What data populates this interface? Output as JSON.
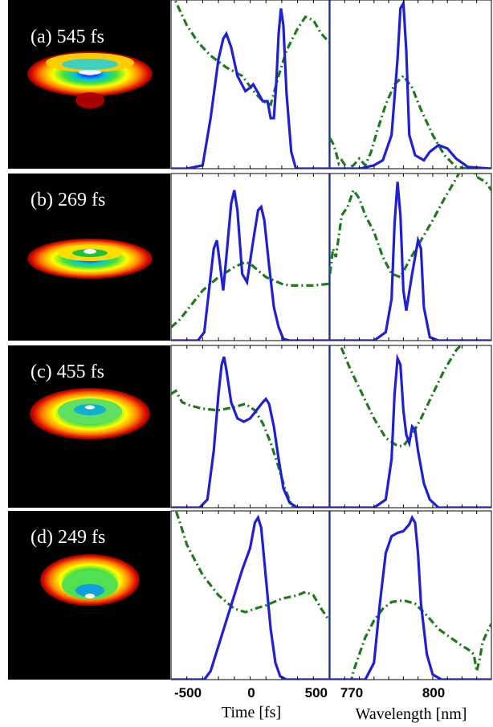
{
  "chart_data": {
    "type": "line",
    "time_axis": {
      "label": "Time [fs]",
      "ticks": [
        -500,
        0,
        500
      ],
      "range": [
        -500,
        500
      ]
    },
    "wavelength_axis": {
      "label": "Wavelength [nm]",
      "ticks": [
        770,
        800
      ],
      "range": [
        765,
        820
      ]
    },
    "colors": {
      "intensity": "#1f1fd6",
      "phase": "#1f7a1f",
      "frame": "#1f3fa8"
    },
    "panels": [
      {
        "label": "(a) 545 fs",
        "temporal_intensity": [
          [
            -500,
            0
          ],
          [
            -400,
            0
          ],
          [
            -300,
            0.02
          ],
          [
            -250,
            0.3
          ],
          [
            -200,
            0.65
          ],
          [
            -170,
            0.77
          ],
          [
            -150,
            0.8
          ],
          [
            -120,
            0.72
          ],
          [
            -80,
            0.55
          ],
          [
            -30,
            0.46
          ],
          [
            0,
            0.48
          ],
          [
            20,
            0.5
          ],
          [
            50,
            0.45
          ],
          [
            80,
            0.4
          ],
          [
            110,
            0.4
          ],
          [
            130,
            0.3
          ],
          [
            150,
            0.3
          ],
          [
            165,
            0.5
          ],
          [
            180,
            0.8
          ],
          [
            195,
            0.95
          ],
          [
            210,
            0.85
          ],
          [
            230,
            0.45
          ],
          [
            260,
            0.1
          ],
          [
            290,
            0
          ],
          [
            500,
            0
          ]
        ],
        "temporal_phase": [
          [
            -500,
            1.05
          ],
          [
            -450,
            0.95
          ],
          [
            -400,
            0.85
          ],
          [
            -330,
            0.75
          ],
          [
            -250,
            0.67
          ],
          [
            -150,
            0.6
          ],
          [
            -50,
            0.55
          ],
          [
            30,
            0.45
          ],
          [
            80,
            0.4
          ],
          [
            130,
            0.38
          ],
          [
            180,
            0.55
          ],
          [
            230,
            0.7
          ],
          [
            300,
            0.83
          ],
          [
            350,
            0.9
          ],
          [
            400,
            0.88
          ],
          [
            450,
            0.8
          ],
          [
            500,
            0.75
          ]
        ],
        "spectral_intensity": [
          [
            765,
            0
          ],
          [
            775,
            0
          ],
          [
            780,
            0.02
          ],
          [
            783,
            0.05
          ],
          [
            786,
            0.2
          ],
          [
            788,
            0.65
          ],
          [
            789,
            0.95
          ],
          [
            790,
            0.98
          ],
          [
            791,
            0.7
          ],
          [
            792,
            0.2
          ],
          [
            794,
            0.08
          ],
          [
            797,
            0.05
          ],
          [
            799,
            0.1
          ],
          [
            802,
            0.14
          ],
          [
            805,
            0.12
          ],
          [
            808,
            0.06
          ],
          [
            812,
            0.01
          ],
          [
            820,
            0
          ]
        ],
        "spectral_phase": [
          [
            765,
            0.18
          ],
          [
            766,
            0.15
          ],
          [
            767,
            0.1
          ],
          [
            768,
            0.03
          ],
          [
            769,
            0.05
          ],
          [
            771,
            0.0
          ],
          [
            773,
            0.02
          ],
          [
            775,
            0.06
          ],
          [
            777,
            0.02
          ],
          [
            779,
            0.1
          ],
          [
            781,
            0.22
          ],
          [
            784,
            0.38
          ],
          [
            787,
            0.5
          ],
          [
            790,
            0.55
          ],
          [
            793,
            0.48
          ],
          [
            796,
            0.35
          ],
          [
            800,
            0.2
          ],
          [
            804,
            0.08
          ],
          [
            808,
            0.01
          ],
          [
            812,
            0
          ],
          [
            815,
            0
          ],
          [
            818,
            0
          ],
          [
            820,
            0
          ]
        ]
      },
      {
        "label": "(b) 269 fs",
        "temporal_intensity": [
          [
            -500,
            0
          ],
          [
            -330,
            0
          ],
          [
            -290,
            0.05
          ],
          [
            -260,
            0.3
          ],
          [
            -230,
            0.55
          ],
          [
            -210,
            0.6
          ],
          [
            -190,
            0.45
          ],
          [
            -170,
            0.3
          ],
          [
            -150,
            0.5
          ],
          [
            -120,
            0.82
          ],
          [
            -100,
            0.9
          ],
          [
            -80,
            0.78
          ],
          [
            -50,
            0.4
          ],
          [
            -20,
            0.35
          ],
          [
            20,
            0.6
          ],
          [
            50,
            0.78
          ],
          [
            70,
            0.8
          ],
          [
            90,
            0.72
          ],
          [
            120,
            0.45
          ],
          [
            150,
            0.2
          ],
          [
            180,
            0.08
          ],
          [
            210,
            0.01
          ],
          [
            250,
            0
          ],
          [
            500,
            0
          ]
        ],
        "temporal_phase": [
          [
            -500,
            0.08
          ],
          [
            -450,
            0.12
          ],
          [
            -400,
            0.18
          ],
          [
            -300,
            0.3
          ],
          [
            -200,
            0.38
          ],
          [
            -100,
            0.44
          ],
          [
            -30,
            0.47
          ],
          [
            0,
            0.46
          ],
          [
            50,
            0.42
          ],
          [
            100,
            0.38
          ],
          [
            150,
            0.36
          ],
          [
            200,
            0.34
          ],
          [
            250,
            0.33
          ],
          [
            300,
            0.33
          ],
          [
            400,
            0.33
          ],
          [
            500,
            0.34
          ]
        ],
        "spectral_intensity": [
          [
            765,
            0
          ],
          [
            780,
            0
          ],
          [
            784,
            0.05
          ],
          [
            786,
            0.25
          ],
          [
            787,
            0.7
          ],
          [
            788,
            0.95
          ],
          [
            789,
            0.75
          ],
          [
            790,
            0.3
          ],
          [
            791,
            0.18
          ],
          [
            793,
            0.4
          ],
          [
            795,
            0.6
          ],
          [
            796,
            0.55
          ],
          [
            797,
            0.2
          ],
          [
            799,
            0.02
          ],
          [
            802,
            0
          ],
          [
            820,
            0
          ]
        ],
        "spectral_phase": [
          [
            765,
            0.4
          ],
          [
            766,
            0.55
          ],
          [
            767,
            0.5
          ],
          [
            769,
            0.75
          ],
          [
            771,
            0.8
          ],
          [
            773,
            0.9
          ],
          [
            775,
            0.85
          ],
          [
            777,
            0.75
          ],
          [
            780,
            0.65
          ],
          [
            783,
            0.5
          ],
          [
            786,
            0.4
          ],
          [
            789,
            0.38
          ],
          [
            792,
            0.48
          ],
          [
            796,
            0.6
          ],
          [
            800,
            0.72
          ],
          [
            804,
            0.85
          ],
          [
            808,
            0.97
          ],
          [
            812,
            1.1
          ],
          [
            815,
            0.98
          ],
          [
            818,
            0.95
          ],
          [
            820,
            0.9
          ]
        ]
      },
      {
        "label": "(c) 455 fs",
        "temporal_intensity": [
          [
            -500,
            0
          ],
          [
            -320,
            0
          ],
          [
            -270,
            0.05
          ],
          [
            -230,
            0.35
          ],
          [
            -200,
            0.7
          ],
          [
            -180,
            0.88
          ],
          [
            -165,
            0.93
          ],
          [
            -150,
            0.85
          ],
          [
            -120,
            0.65
          ],
          [
            -80,
            0.55
          ],
          [
            -40,
            0.53
          ],
          [
            0,
            0.55
          ],
          [
            40,
            0.6
          ],
          [
            80,
            0.65
          ],
          [
            100,
            0.67
          ],
          [
            120,
            0.64
          ],
          [
            150,
            0.5
          ],
          [
            180,
            0.3
          ],
          [
            210,
            0.12
          ],
          [
            250,
            0.03
          ],
          [
            300,
            0
          ],
          [
            500,
            0
          ]
        ],
        "temporal_phase": [
          [
            -500,
            0.7
          ],
          [
            -470,
            0.72
          ],
          [
            -430,
            0.65
          ],
          [
            -380,
            0.63
          ],
          [
            -300,
            0.61
          ],
          [
            -200,
            0.6
          ],
          [
            -100,
            0.62
          ],
          [
            -30,
            0.64
          ],
          [
            30,
            0.6
          ],
          [
            80,
            0.52
          ],
          [
            130,
            0.4
          ],
          [
            180,
            0.25
          ],
          [
            220,
            0.12
          ],
          [
            260,
            0.02
          ],
          [
            300,
            -0.05
          ]
        ],
        "spectral_intensity": [
          [
            765,
            0
          ],
          [
            780,
            0
          ],
          [
            784,
            0.05
          ],
          [
            786,
            0.3
          ],
          [
            787,
            0.7
          ],
          [
            788,
            0.92
          ],
          [
            789,
            0.88
          ],
          [
            790,
            0.6
          ],
          [
            791,
            0.45
          ],
          [
            792,
            0.4
          ],
          [
            793,
            0.5
          ],
          [
            794,
            0.48
          ],
          [
            795,
            0.35
          ],
          [
            797,
            0.15
          ],
          [
            799,
            0.05
          ],
          [
            802,
            0
          ],
          [
            820,
            0
          ]
        ],
        "spectral_phase": [
          [
            765,
            1.05
          ],
          [
            769,
            0.98
          ],
          [
            772,
            0.85
          ],
          [
            776,
            0.7
          ],
          [
            780,
            0.55
          ],
          [
            784,
            0.43
          ],
          [
            788,
            0.38
          ],
          [
            790,
            0.38
          ],
          [
            793,
            0.45
          ],
          [
            796,
            0.55
          ],
          [
            800,
            0.7
          ],
          [
            804,
            0.85
          ],
          [
            808,
            0.97
          ],
          [
            812,
            1.05
          ]
        ]
      },
      {
        "label": "(d) 249 fs",
        "temporal_intensity": [
          [
            -500,
            0
          ],
          [
            -290,
            0
          ],
          [
            -250,
            0.05
          ],
          [
            -200,
            0.2
          ],
          [
            -150,
            0.35
          ],
          [
            -100,
            0.5
          ],
          [
            -50,
            0.65
          ],
          [
            0,
            0.78
          ],
          [
            30,
            0.93
          ],
          [
            50,
            0.96
          ],
          [
            70,
            0.9
          ],
          [
            100,
            0.6
          ],
          [
            130,
            0.3
          ],
          [
            160,
            0.1
          ],
          [
            190,
            0.02
          ],
          [
            230,
            0
          ],
          [
            500,
            0
          ]
        ],
        "temporal_phase": [
          [
            -500,
            1.08
          ],
          [
            -450,
            0.95
          ],
          [
            -400,
            0.8
          ],
          [
            -300,
            0.62
          ],
          [
            -200,
            0.5
          ],
          [
            -100,
            0.42
          ],
          [
            -30,
            0.4
          ],
          [
            30,
            0.42
          ],
          [
            100,
            0.44
          ],
          [
            200,
            0.48
          ],
          [
            300,
            0.5
          ],
          [
            350,
            0.52
          ],
          [
            400,
            0.5
          ],
          [
            450,
            0.42
          ],
          [
            500,
            0.35
          ]
        ],
        "spectral_intensity": [
          [
            765,
            0
          ],
          [
            777,
            0
          ],
          [
            780,
            0.1
          ],
          [
            782,
            0.45
          ],
          [
            784,
            0.75
          ],
          [
            786,
            0.85
          ],
          [
            788,
            0.87
          ],
          [
            790,
            0.88
          ],
          [
            792,
            0.92
          ],
          [
            793,
            0.96
          ],
          [
            794,
            0.93
          ],
          [
            795,
            0.75
          ],
          [
            796,
            0.45
          ],
          [
            798,
            0.15
          ],
          [
            800,
            0.03
          ],
          [
            803,
            0
          ],
          [
            820,
            0
          ]
        ],
        "spectral_phase": [
          [
            765,
            -0.1
          ],
          [
            771,
            -0.1
          ],
          [
            773,
            0.05
          ],
          [
            775,
            0.15
          ],
          [
            777,
            0.25
          ],
          [
            780,
            0.35
          ],
          [
            783,
            0.42
          ],
          [
            786,
            0.46
          ],
          [
            790,
            0.47
          ],
          [
            794,
            0.45
          ],
          [
            798,
            0.38
          ],
          [
            802,
            0.3
          ],
          [
            806,
            0.25
          ],
          [
            810,
            0.2
          ],
          [
            812,
            0.18
          ],
          [
            814,
            0.15
          ],
          [
            815,
            0.05
          ],
          [
            816,
            0.12
          ],
          [
            817,
            0.22
          ],
          [
            819,
            0.3
          ],
          [
            820,
            0.33
          ]
        ]
      }
    ]
  }
}
